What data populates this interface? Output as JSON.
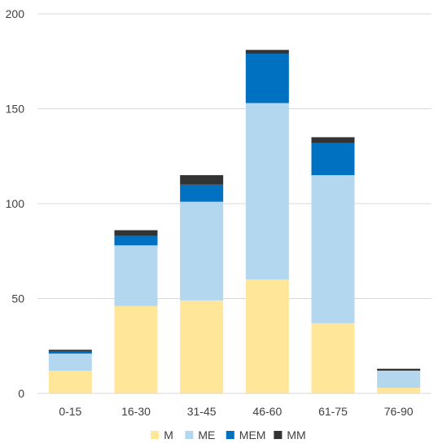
{
  "chart_data": {
    "type": "bar",
    "stacked": true,
    "title": "",
    "xlabel": "",
    "ylabel": "",
    "categories": [
      "0-15",
      "16-30",
      "31-45",
      "46-60",
      "61-75",
      "76-90"
    ],
    "series": [
      {
        "name": "M",
        "color": "#FFE699",
        "values": [
          12,
          46,
          49,
          60,
          37,
          3
        ]
      },
      {
        "name": "ME",
        "color": "#B4D7F0",
        "values": [
          9,
          32,
          52,
          93,
          78,
          9
        ]
      },
      {
        "name": "MEM",
        "color": "#0070C0",
        "values": [
          1,
          5,
          9,
          26,
          17,
          0
        ]
      },
      {
        "name": "MM",
        "color": "#333333",
        "values": [
          1,
          3,
          5,
          2,
          3,
          1
        ]
      }
    ],
    "ylim": [
      0,
      200
    ],
    "yticks": [
      0,
      50,
      100,
      150,
      200
    ],
    "grid": true,
    "legend": "bottom"
  }
}
